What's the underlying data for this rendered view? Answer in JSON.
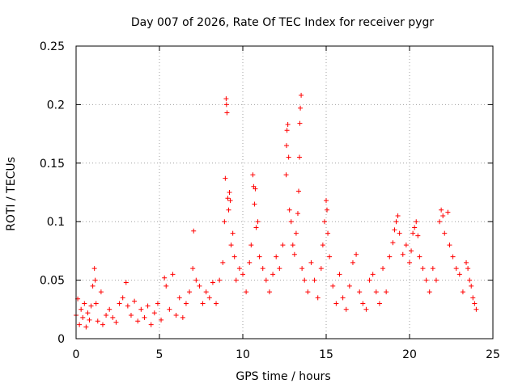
{
  "chart_data": {
    "type": "scatter",
    "title": "Day 007 of 2026, Rate Of TEC Index for receiver pygr",
    "xlabel": "GPS time / hours",
    "ylabel": "ROTI / TECUs",
    "xlim": [
      0,
      25
    ],
    "ylim": [
      0,
      0.25
    ],
    "xticks": [
      0,
      5,
      10,
      15,
      20,
      25
    ],
    "yticks": [
      0,
      0.05,
      0.1,
      0.15,
      0.2,
      0.25
    ],
    "xtick_labels": [
      "0",
      "5",
      "10",
      "15",
      "20",
      "25"
    ],
    "ytick_labels": [
      "0",
      "0.05",
      "0.1",
      "0.15",
      "0.2",
      "0.25"
    ],
    "grid": true,
    "marker": "+",
    "series": [
      {
        "color": "#ff0000",
        "points": [
          [
            0.0,
            0.02
          ],
          [
            0.1,
            0.034
          ],
          [
            0.2,
            0.012
          ],
          [
            0.3,
            0.025
          ],
          [
            0.4,
            0.018
          ],
          [
            0.5,
            0.03
          ],
          [
            0.6,
            0.01
          ],
          [
            0.7,
            0.022
          ],
          [
            0.8,
            0.016
          ],
          [
            0.9,
            0.028
          ],
          [
            1.0,
            0.045
          ],
          [
            1.1,
            0.06
          ],
          [
            1.15,
            0.05
          ],
          [
            1.2,
            0.03
          ],
          [
            1.3,
            0.015
          ],
          [
            1.5,
            0.04
          ],
          [
            1.6,
            0.012
          ],
          [
            1.8,
            0.02
          ],
          [
            2.0,
            0.025
          ],
          [
            2.2,
            0.018
          ],
          [
            2.4,
            0.014
          ],
          [
            2.6,
            0.03
          ],
          [
            2.8,
            0.035
          ],
          [
            3.0,
            0.048
          ],
          [
            3.1,
            0.028
          ],
          [
            3.3,
            0.02
          ],
          [
            3.5,
            0.032
          ],
          [
            3.7,
            0.015
          ],
          [
            3.9,
            0.025
          ],
          [
            4.1,
            0.018
          ],
          [
            4.3,
            0.028
          ],
          [
            4.5,
            0.012
          ],
          [
            4.7,
            0.022
          ],
          [
            4.9,
            0.03
          ],
          [
            5.1,
            0.016
          ],
          [
            5.3,
            0.052
          ],
          [
            5.4,
            0.045
          ],
          [
            5.6,
            0.025
          ],
          [
            5.8,
            0.055
          ],
          [
            6.0,
            0.02
          ],
          [
            6.2,
            0.035
          ],
          [
            6.4,
            0.018
          ],
          [
            6.6,
            0.03
          ],
          [
            6.8,
            0.04
          ],
          [
            7.0,
            0.06
          ],
          [
            7.05,
            0.092
          ],
          [
            7.2,
            0.05
          ],
          [
            7.4,
            0.045
          ],
          [
            7.6,
            0.03
          ],
          [
            7.8,
            0.04
          ],
          [
            8.0,
            0.035
          ],
          [
            8.2,
            0.048
          ],
          [
            8.4,
            0.03
          ],
          [
            8.6,
            0.05
          ],
          [
            8.8,
            0.065
          ],
          [
            8.9,
            0.1
          ],
          [
            8.95,
            0.137
          ],
          [
            9.0,
            0.205
          ],
          [
            9.02,
            0.2
          ],
          [
            9.05,
            0.193
          ],
          [
            9.1,
            0.12
          ],
          [
            9.15,
            0.11
          ],
          [
            9.2,
            0.125
          ],
          [
            9.25,
            0.118
          ],
          [
            9.3,
            0.08
          ],
          [
            9.4,
            0.09
          ],
          [
            9.5,
            0.07
          ],
          [
            9.6,
            0.05
          ],
          [
            9.8,
            0.06
          ],
          [
            10.0,
            0.055
          ],
          [
            10.2,
            0.04
          ],
          [
            10.4,
            0.065
          ],
          [
            10.5,
            0.08
          ],
          [
            10.6,
            0.14
          ],
          [
            10.65,
            0.13
          ],
          [
            10.7,
            0.115
          ],
          [
            10.75,
            0.128
          ],
          [
            10.8,
            0.095
          ],
          [
            10.9,
            0.1
          ],
          [
            11.0,
            0.07
          ],
          [
            11.2,
            0.06
          ],
          [
            11.4,
            0.05
          ],
          [
            11.6,
            0.04
          ],
          [
            11.8,
            0.055
          ],
          [
            12.0,
            0.07
          ],
          [
            12.2,
            0.06
          ],
          [
            12.4,
            0.08
          ],
          [
            12.6,
            0.14
          ],
          [
            12.62,
            0.165
          ],
          [
            12.65,
            0.178
          ],
          [
            12.7,
            0.183
          ],
          [
            12.75,
            0.155
          ],
          [
            12.8,
            0.11
          ],
          [
            12.9,
            0.1
          ],
          [
            13.0,
            0.08
          ],
          [
            13.1,
            0.072
          ],
          [
            13.2,
            0.09
          ],
          [
            13.3,
            0.107
          ],
          [
            13.35,
            0.126
          ],
          [
            13.4,
            0.155
          ],
          [
            13.42,
            0.184
          ],
          [
            13.45,
            0.197
          ],
          [
            13.5,
            0.208
          ],
          [
            13.55,
            0.06
          ],
          [
            13.7,
            0.05
          ],
          [
            13.9,
            0.04
          ],
          [
            14.1,
            0.065
          ],
          [
            14.3,
            0.05
          ],
          [
            14.5,
            0.035
          ],
          [
            14.7,
            0.06
          ],
          [
            14.8,
            0.08
          ],
          [
            14.9,
            0.1
          ],
          [
            15.0,
            0.118
          ],
          [
            15.05,
            0.11
          ],
          [
            15.1,
            0.09
          ],
          [
            15.2,
            0.07
          ],
          [
            15.4,
            0.045
          ],
          [
            15.6,
            0.03
          ],
          [
            15.8,
            0.055
          ],
          [
            16.0,
            0.035
          ],
          [
            16.2,
            0.025
          ],
          [
            16.4,
            0.045
          ],
          [
            16.6,
            0.065
          ],
          [
            16.8,
            0.072
          ],
          [
            17.0,
            0.04
          ],
          [
            17.2,
            0.03
          ],
          [
            17.4,
            0.025
          ],
          [
            17.6,
            0.05
          ],
          [
            17.8,
            0.055
          ],
          [
            18.0,
            0.04
          ],
          [
            18.2,
            0.03
          ],
          [
            18.4,
            0.06
          ],
          [
            18.6,
            0.04
          ],
          [
            18.8,
            0.07
          ],
          [
            19.0,
            0.082
          ],
          [
            19.1,
            0.093
          ],
          [
            19.2,
            0.1
          ],
          [
            19.3,
            0.105
          ],
          [
            19.4,
            0.09
          ],
          [
            19.6,
            0.072
          ],
          [
            19.8,
            0.08
          ],
          [
            20.0,
            0.065
          ],
          [
            20.1,
            0.075
          ],
          [
            20.2,
            0.09
          ],
          [
            20.3,
            0.095
          ],
          [
            20.4,
            0.1
          ],
          [
            20.5,
            0.088
          ],
          [
            20.6,
            0.07
          ],
          [
            20.8,
            0.06
          ],
          [
            21.0,
            0.05
          ],
          [
            21.2,
            0.04
          ],
          [
            21.4,
            0.06
          ],
          [
            21.6,
            0.05
          ],
          [
            21.8,
            0.1
          ],
          [
            21.9,
            0.11
          ],
          [
            22.0,
            0.105
          ],
          [
            22.1,
            0.09
          ],
          [
            22.3,
            0.108
          ],
          [
            22.4,
            0.08
          ],
          [
            22.6,
            0.07
          ],
          [
            22.8,
            0.06
          ],
          [
            23.0,
            0.055
          ],
          [
            23.2,
            0.04
          ],
          [
            23.4,
            0.065
          ],
          [
            23.5,
            0.06
          ],
          [
            23.6,
            0.05
          ],
          [
            23.7,
            0.045
          ],
          [
            23.8,
            0.035
          ],
          [
            23.9,
            0.03
          ],
          [
            24.0,
            0.025
          ]
        ]
      }
    ]
  }
}
